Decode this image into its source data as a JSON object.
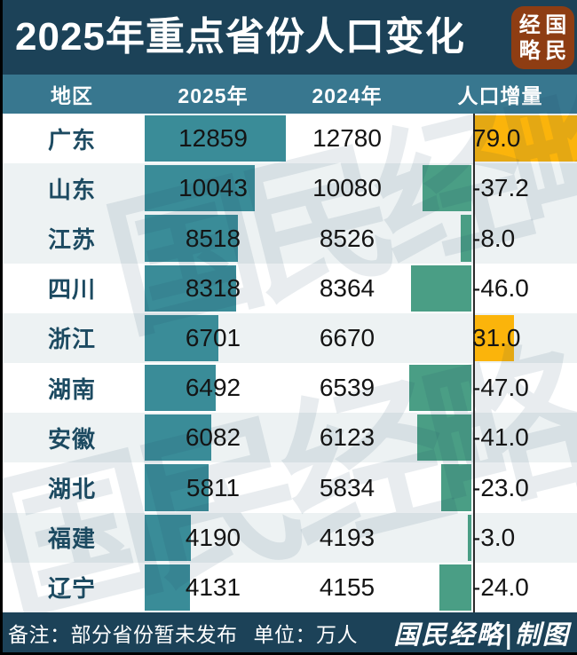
{
  "header": {
    "title": "2025年重点省份人口变化",
    "seal_name": "国民经略",
    "seal_chars": [
      "经",
      "国",
      "略",
      "民"
    ]
  },
  "columns": {
    "region": "地区",
    "y2025": "2025年",
    "y2024": "2024年",
    "delta": "人口增量"
  },
  "rows": [
    {
      "region": "广东",
      "y2025": "12859",
      "y2024": "12780",
      "delta": 79.0,
      "delta_label": "79.0",
      "shaded": false
    },
    {
      "region": "山东",
      "y2025": "10043",
      "y2024": "10080",
      "delta": -37.2,
      "delta_label": "-37.2",
      "shaded": true
    },
    {
      "region": "江苏",
      "y2025": "8518",
      "y2024": "8526",
      "delta": -8.0,
      "delta_label": "-8.0",
      "shaded": true
    },
    {
      "region": "四川",
      "y2025": "8318",
      "y2024": "8364",
      "delta": -46.0,
      "delta_label": "-46.0",
      "shaded": false
    },
    {
      "region": "浙江",
      "y2025": "6701",
      "y2024": "6670",
      "delta": 31.0,
      "delta_label": "31.0",
      "shaded": true
    },
    {
      "region": "湖南",
      "y2025": "6492",
      "y2024": "6539",
      "delta": -47.0,
      "delta_label": "-47.0",
      "shaded": false
    },
    {
      "region": "安徽",
      "y2025": "6082",
      "y2024": "6123",
      "delta": -41.0,
      "delta_label": "-41.0",
      "shaded": true
    },
    {
      "region": "湖北",
      "y2025": "5811",
      "y2024": "5834",
      "delta": -23.0,
      "delta_label": "-23.0",
      "shaded": false
    },
    {
      "region": "福建",
      "y2025": "4190",
      "y2024": "4193",
      "delta": -3.0,
      "delta_label": "-3.0",
      "shaded": true
    },
    {
      "region": "辽宁",
      "y2025": "4131",
      "y2024": "4155",
      "delta": -24.0,
      "delta_label": "-24.0",
      "shaded": false
    }
  ],
  "footer": {
    "note": "备注：部分省份暂未发布",
    "unit": "单位：万人",
    "brand": "国民经略|制图"
  },
  "watermark": "国民经略",
  "colors": {
    "header_bg": "#1C4258",
    "column_header_bg": "#38778F",
    "bar_2025": "#3A8C98",
    "bar_negative": "#4A9E85",
    "bar_positive": "#FBB40B",
    "row_shaded": "#EDF2F3",
    "row_plain": "#FFFFFF",
    "region_text": "#1C4A61",
    "seal_bg": "#8E3D13"
  },
  "chart_data": {
    "type": "bar",
    "title": "2025年重点省份人口变化",
    "categories": [
      "广东",
      "山东",
      "江苏",
      "四川",
      "浙江",
      "湖南",
      "安徽",
      "湖北",
      "福建",
      "辽宁"
    ],
    "series": [
      {
        "name": "2025年",
        "values": [
          12859,
          10043,
          8518,
          8318,
          6701,
          6492,
          6082,
          5811,
          4190,
          4131
        ]
      },
      {
        "name": "2024年",
        "values": [
          12780,
          10080,
          8526,
          8364,
          6670,
          6539,
          6123,
          5834,
          4193,
          4155
        ]
      },
      {
        "name": "人口增量",
        "values": [
          79.0,
          -37.2,
          -8.0,
          -46.0,
          31.0,
          -47.0,
          -41.0,
          -23.0,
          -3.0,
          -24.0
        ]
      }
    ],
    "unit": "万人",
    "note": "部分省份暂未发布",
    "orientation": "horizontal",
    "legend_position": "column-headers",
    "grid": false
  }
}
